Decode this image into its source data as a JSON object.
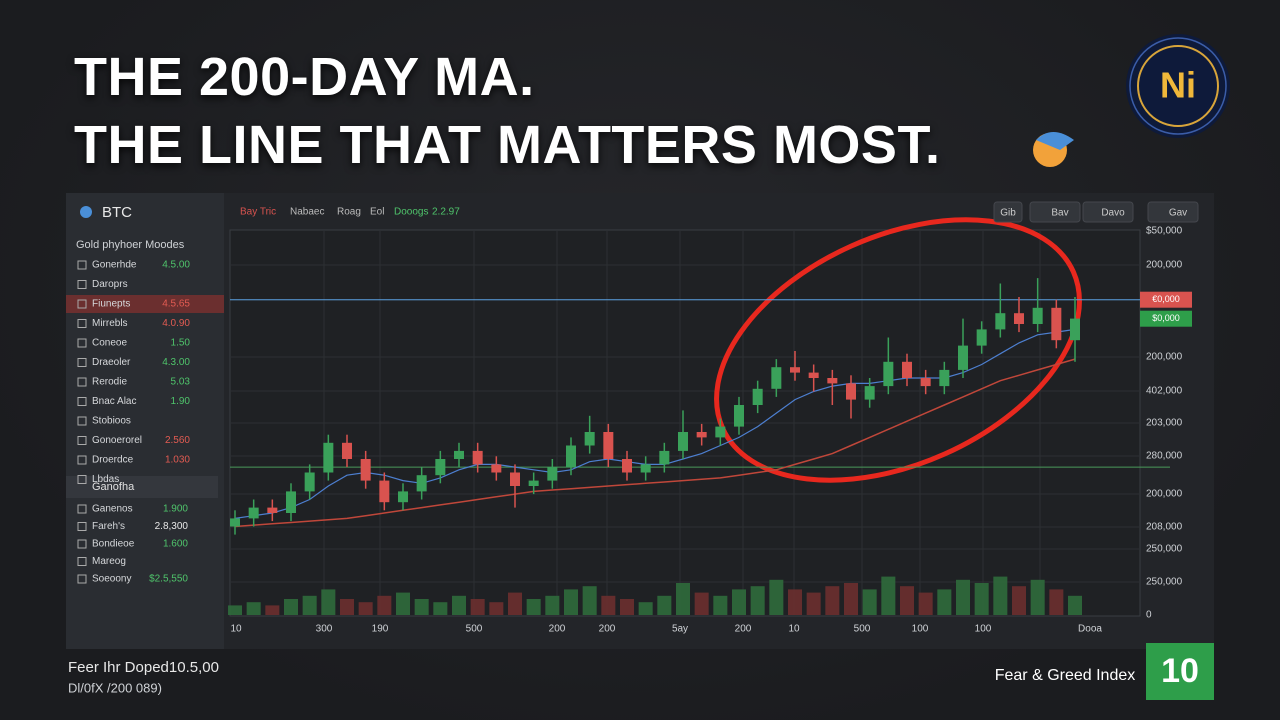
{
  "header": {
    "title_line1": "THE 200-DAY MA.",
    "title_line2": "THE LINE THAT MATTERS MOST.",
    "logo": "Ni"
  },
  "sidebar": {
    "asset": "BTC",
    "heading": "Gold phyhoer Moodes",
    "rows": [
      [
        "Gonerhde",
        "4.5.00"
      ],
      [
        "Daroprs",
        ""
      ],
      [
        "Fiunepts",
        "4.5.65"
      ],
      [
        "Mirrebls",
        "4.0.90"
      ],
      [
        "Coneoe",
        "1.50"
      ],
      [
        "Draeoler",
        "4.3.00"
      ],
      [
        "Rerodie",
        "5.03"
      ],
      [
        "Bnac Alac",
        "1.90"
      ],
      [
        "Stobioos",
        ""
      ],
      [
        "Gonoerorel",
        "2.560"
      ],
      [
        "Droerdce",
        "1.030"
      ],
      [
        "Lbdas",
        ""
      ]
    ],
    "section": "Ganofha",
    "section_rows": [
      [
        "Ganenos",
        "1.900"
      ],
      [
        "Fareh's",
        "2.8,300"
      ],
      [
        "Bondieoe",
        "1.600"
      ],
      [
        "Mareog",
        ""
      ],
      [
        "Soeoony",
        "$2.5,550"
      ]
    ]
  },
  "toolbar": {
    "tabs": [
      "Bay Tric",
      "Nabaec",
      "Roag",
      "Eol",
      "Dooogs",
      "2.2.97"
    ],
    "buttons": [
      "Gib",
      "Bav",
      "Davo",
      "Gav"
    ]
  },
  "chart": {
    "type": "candlestick",
    "ylim": [
      0,
      100
    ],
    "y_labels": [
      "$50,000",
      "200,000",
      "200,000",
      "402,000",
      "203,000",
      "280,000",
      "200,000",
      "208,000",
      "250,000",
      "250,000",
      0
    ],
    "x_labels": [
      "10",
      "300",
      "190",
      "500",
      "200",
      "200",
      "5ay",
      "200",
      "10",
      "500",
      "100",
      "100",
      "Dooa"
    ],
    "price_tags": [
      "€0,000",
      "$0,000"
    ],
    "levels": [
      89,
      27
    ],
    "candles": [
      [
        5,
        8,
        11,
        2
      ],
      [
        8,
        12,
        15,
        5
      ],
      [
        12,
        10,
        15,
        7
      ],
      [
        10,
        18,
        21,
        7
      ],
      [
        18,
        25,
        28,
        15
      ],
      [
        25,
        36,
        39,
        22
      ],
      [
        36,
        30,
        39,
        27
      ],
      [
        30,
        22,
        33,
        19
      ],
      [
        22,
        14,
        25,
        11
      ],
      [
        14,
        18,
        21,
        11
      ],
      [
        18,
        24,
        27,
        15
      ],
      [
        24,
        30,
        33,
        21
      ],
      [
        30,
        33,
        36,
        27
      ],
      [
        33,
        28,
        36,
        25
      ],
      [
        28,
        25,
        31,
        22
      ],
      [
        25,
        20,
        28,
        12
      ],
      [
        20,
        22,
        25,
        17
      ],
      [
        22,
        27,
        30,
        19
      ],
      [
        27,
        35,
        38,
        24
      ],
      [
        35,
        40,
        46,
        32
      ],
      [
        40,
        30,
        43,
        27
      ],
      [
        30,
        25,
        33,
        22
      ],
      [
        25,
        28,
        31,
        22
      ],
      [
        28,
        33,
        36,
        25
      ],
      [
        33,
        40,
        48,
        30
      ],
      [
        40,
        38,
        43,
        35
      ],
      [
        38,
        42,
        45,
        35
      ],
      [
        42,
        50,
        53,
        39
      ],
      [
        50,
        56,
        59,
        47
      ],
      [
        56,
        64,
        67,
        53
      ],
      [
        64,
        62,
        70,
        59
      ],
      [
        62,
        60,
        65,
        55
      ],
      [
        60,
        58,
        63,
        50
      ],
      [
        58,
        52,
        61,
        45
      ],
      [
        52,
        57,
        60,
        49
      ],
      [
        57,
        66,
        75,
        54
      ],
      [
        66,
        60,
        69,
        57
      ],
      [
        60,
        57,
        63,
        54
      ],
      [
        57,
        63,
        66,
        54
      ],
      [
        63,
        72,
        82,
        60
      ],
      [
        72,
        78,
        81,
        69
      ],
      [
        78,
        84,
        95,
        75
      ],
      [
        84,
        80,
        90,
        77
      ],
      [
        80,
        86,
        97,
        77
      ],
      [
        86,
        74,
        89,
        71
      ],
      [
        74,
        82,
        90,
        66
      ]
    ],
    "volume": [
      3,
      4,
      3,
      5,
      6,
      8,
      5,
      4,
      6,
      7,
      5,
      4,
      6,
      5,
      4,
      7,
      5,
      6,
      8,
      9,
      6,
      5,
      4,
      6,
      10,
      7,
      6,
      8,
      9,
      11,
      8,
      7,
      9,
      10,
      8,
      12,
      9,
      7,
      8,
      11,
      10,
      12,
      9,
      11,
      8,
      6
    ],
    "ma_short": [
      8,
      9,
      10,
      12,
      15,
      20,
      24,
      25,
      24,
      22,
      21,
      23,
      26,
      28,
      28,
      27,
      26,
      25,
      26,
      29,
      30,
      29,
      28,
      28,
      30,
      32,
      35,
      38,
      42,
      47,
      52,
      55,
      57,
      58,
      58,
      59,
      60,
      60,
      60,
      62,
      65,
      69,
      73,
      76,
      77,
      78
    ],
    "ma_long": [
      5,
      5.5,
      6,
      6.5,
      7,
      7.5,
      8,
      9,
      10,
      11,
      12,
      13,
      14,
      15,
      16,
      17,
      18,
      18.5,
      19,
      19.5,
      20,
      20.5,
      21,
      21.5,
      22,
      22.5,
      23,
      24,
      25,
      26,
      28,
      30,
      32,
      35,
      38,
      41,
      44,
      47,
      50,
      53,
      56,
      59,
      61,
      63,
      65,
      67
    ]
  },
  "footer": {
    "left_line1": "Feer Ihr Doped10.5,00",
    "left_line2": "Dl/0fX /200 089)",
    "index_label": "Fear & Greed Index",
    "index_value": 10
  }
}
